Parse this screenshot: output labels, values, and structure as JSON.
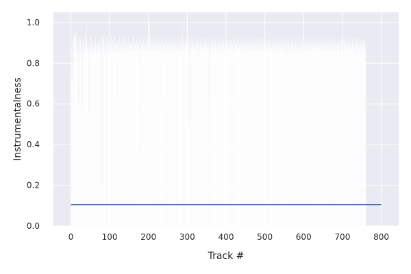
{
  "chart_data": {
    "type": "bar",
    "xlabel": "Track #",
    "ylabel": "Instrumentalness",
    "xlim": [
      -45,
      845
    ],
    "ylim": [
      0.0,
      1.05
    ],
    "xticks": [
      0,
      100,
      200,
      300,
      400,
      500,
      600,
      700,
      800
    ],
    "yticks": [
      0.0,
      0.2,
      0.4,
      0.6,
      0.8,
      1.0
    ],
    "ytick_labels": [
      "0.0",
      "0.2",
      "0.4",
      "0.6",
      "0.8",
      "1.0"
    ],
    "grid": true,
    "background_color": "#eaeaf2",
    "bar_color": "#ffffff",
    "line_color": "#4c72b0",
    "series": [
      {
        "kind": "bar",
        "x_start": 0,
        "x_step": 1,
        "values": [
          0.62,
          0.88,
          0.74,
          0.8,
          0.71,
          0.9,
          0.92,
          0.86,
          0.93,
          0.95,
          0.89,
          0.94,
          0.91,
          0.93,
          0.87,
          0.96,
          0.9,
          0.84,
          0.88,
          0.59,
          0.91,
          0.93,
          0.9,
          0.86,
          0.85,
          0.92,
          0.88,
          0.83,
          0.9,
          0.94,
          0.58,
          0.87,
          0.91,
          0.89,
          0.84,
          0.86,
          0.93,
          0.9,
          0.88,
          0.85,
          1.0,
          0.92,
          0.87,
          0.89,
          0.83,
          0.91,
          0.86,
          0.88,
          0.56,
          0.9,
          0.93,
          0.88,
          0.85,
          0.91,
          0.87,
          0.89,
          0.92,
          0.84,
          0.86,
          0.9,
          0.88,
          0.85,
          0.91,
          0.87,
          0.93,
          0.89,
          0.84,
          0.86,
          0.9,
          0.88,
          0.92,
          0.86,
          0.88,
          0.9,
          0.84,
          0.91,
          0.89,
          0.87,
          0.93,
          0.2,
          0.86,
          0.9,
          0.93,
          0.88,
          0.91,
          0.94,
          0.89,
          0.85,
          0.92,
          0.87,
          0.4,
          0.9,
          0.88,
          0.93,
          0.86,
          0.91,
          0.89,
          0.84,
          0.9,
          0.87,
          0.92,
          0.88,
          0.91,
          0.85,
          0.89,
          0.93,
          0.46,
          0.88,
          0.91,
          0.86,
          0.9,
          0.87,
          0.93,
          0.89,
          0.85,
          0.9,
          0.88,
          0.92,
          0.86,
          0.89,
          0.91,
          0.87,
          0.64,
          0.9,
          0.88,
          0.93,
          0.86,
          0.91,
          0.89,
          0.85,
          0.9,
          0.87,
          0.92,
          0.88,
          0.91,
          0.86,
          0.89,
          0.93,
          0.87,
          0.9,
          0.88,
          0.92,
          0.86,
          0.89,
          0.91,
          0.87,
          0.9,
          0.88,
          0.93,
          0.86,
          0.89,
          0.91,
          0.87,
          0.9,
          0.88,
          0.92,
          0.86,
          0.89,
          0.91,
          0.87,
          0.9,
          0.88,
          0.93,
          0.86,
          0.89,
          0.91,
          0.87,
          0.9,
          0.88,
          0.92,
          0.86,
          0.89,
          0.91,
          0.87,
          0.9,
          0.88,
          0.92,
          0.86,
          0.89,
          0.91,
          0.87,
          0.37,
          0.9,
          0.88,
          0.92,
          0.86,
          0.89,
          0.91,
          0.87,
          0.9,
          0.88,
          0.93,
          0.86,
          0.89,
          0.91,
          0.87,
          0.9,
          0.88,
          0.92,
          0.86,
          0.89,
          0.91,
          0.87,
          0.99,
          0.88,
          0.92,
          0.86,
          0.89,
          0.91,
          0.87,
          0.9,
          0.88,
          0.93,
          0.86,
          0.89,
          0.91,
          0.87,
          0.9,
          0.88,
          0.92,
          0.86,
          0.89,
          0.91,
          0.87,
          0.9,
          0.88,
          0.92,
          0.86,
          0.89,
          0.91,
          0.87,
          0.9,
          0.88,
          0.92,
          0.6,
          0.89,
          0.91,
          0.87,
          0.9,
          0.88,
          0.92,
          0.86,
          0.89,
          0.91,
          0.87,
          0.9,
          0.88,
          0.93,
          0.86,
          0.89,
          0.91,
          0.87,
          0.9,
          0.88,
          0.92,
          0.86,
          0.89,
          0.91,
          0.87,
          0.9,
          0.88,
          0.92,
          0.86,
          0.89,
          0.91,
          0.87,
          0.9,
          0.88,
          0.92,
          0.86,
          0.89,
          0.91,
          0.87,
          0.9,
          0.88,
          0.93,
          0.86,
          0.89,
          0.91,
          0.87,
          0.9,
          0.88,
          0.92,
          0.86,
          0.89,
          0.91,
          0.87,
          0.98,
          0.88,
          0.92,
          0.86,
          0.89,
          0.91,
          0.87,
          0.9,
          0.88,
          0.92,
          0.86,
          0.89,
          0.91,
          0.87,
          0.9,
          0.88,
          0.92,
          0.86,
          0.49,
          0.91,
          0.87,
          0.9,
          0.88,
          0.92,
          0.86,
          0.89,
          0.91,
          0.87,
          0.9,
          0.88,
          0.92,
          0.86,
          0.89,
          0.91,
          0.87,
          0.9,
          0.88,
          0.92,
          0.86,
          0.89,
          0.91,
          0.87,
          0.9,
          0.88,
          0.92,
          0.86,
          0.89,
          0.91,
          0.87,
          0.9,
          0.88,
          0.92,
          0.86,
          0.89,
          0.91,
          0.87,
          0.9,
          0.88,
          0.92,
          0.86,
          0.89,
          0.91,
          0.87,
          0.9,
          0.88,
          0.92,
          0.86,
          0.89,
          0.91,
          0.87,
          0.55,
          0.88,
          0.92,
          0.86,
          0.89,
          0.91,
          0.87,
          0.9,
          0.88,
          0.92,
          0.86,
          0.89,
          0.91,
          0.87,
          0.9,
          0.88,
          0.92,
          0.86,
          0.89,
          0.91,
          0.87,
          0.9,
          0.88,
          0.92,
          0.86,
          0.89,
          0.91,
          0.87,
          0.9,
          0.88,
          0.92,
          0.86,
          0.89,
          0.91,
          0.87,
          0.9,
          0.88,
          0.92,
          0.86,
          0.89,
          0.91,
          0.87,
          0.9,
          0.88,
          0.92,
          0.86,
          0.89,
          0.91,
          0.87,
          0.9,
          0.88,
          0.92,
          0.86,
          0.89,
          0.91,
          0.87,
          0.9,
          0.88,
          0.92,
          0.86,
          0.89,
          0.91,
          0.87,
          0.9,
          0.88,
          0.92,
          0.86,
          0.89,
          0.91,
          0.87,
          0.9,
          0.88,
          0.92,
          0.86,
          0.89,
          0.91,
          0.87,
          0.9,
          0.88,
          0.92,
          0.86,
          0.89,
          0.91,
          0.87,
          0.9,
          0.88,
          0.92,
          0.86,
          0.89,
          0.91,
          0.87,
          0.9,
          0.88,
          0.92,
          0.86,
          0.89,
          0.91,
          0.87,
          0.9,
          0.88,
          0.92,
          0.86,
          0.89,
          0.91,
          0.87,
          0.9,
          0.88,
          0.92,
          0.86,
          0.89,
          0.91,
          0.87,
          0.9,
          0.88,
          0.92,
          0.86,
          0.89,
          0.91,
          0.87,
          0.9,
          0.88,
          0.92,
          0.86,
          0.89,
          0.91,
          0.87,
          0.9,
          0.88,
          0.92,
          0.86,
          0.89,
          0.91,
          0.87,
          0.9,
          0.88,
          0.92,
          0.86,
          0.89,
          0.91,
          0.87,
          0.9,
          0.88,
          0.92,
          0.86,
          0.89,
          0.91,
          0.87,
          0.9,
          0.88,
          0.92,
          0.86,
          0.89,
          0.91,
          0.87,
          0.9,
          0.88,
          0.92,
          0.86,
          0.89,
          0.91,
          0.87,
          0.9,
          0.88,
          0.92,
          0.86,
          0.89,
          0.91,
          0.87,
          0.9,
          0.88,
          0.92,
          0.86,
          0.89,
          0.91,
          0.87,
          0.9,
          0.88,
          0.92,
          0.86,
          0.89,
          0.91,
          0.87,
          0.9,
          0.88,
          0.92,
          0.86,
          0.89,
          0.91,
          0.87,
          0.9,
          0.88,
          0.92,
          0.86,
          0.89,
          0.91,
          0.87,
          0.9,
          0.88,
          0.92,
          0.86,
          0.89,
          0.91,
          0.87,
          0.9,
          0.88,
          0.92,
          0.86,
          0.89,
          0.91,
          0.87,
          0.9,
          0.88,
          0.92,
          0.86,
          0.89,
          0.91,
          0.87,
          0.9,
          0.88,
          0.92,
          0.86,
          0.89,
          0.91,
          0.87,
          0.9,
          0.88,
          0.92,
          0.86,
          0.89,
          0.91,
          0.87,
          0.9,
          0.88,
          0.92,
          0.86,
          0.89,
          0.91,
          0.87,
          0.9,
          0.88,
          0.92,
          0.86,
          0.89,
          0.91,
          0.87,
          0.9,
          0.88,
          0.92,
          0.86,
          0.89,
          0.91,
          0.87,
          0.9,
          0.88,
          0.92,
          0.86,
          0.89,
          0.91,
          0.87,
          0.9,
          0.88,
          0.92,
          0.86,
          0.89,
          0.91,
          0.87,
          0.9,
          0.88,
          0.92,
          0.86,
          0.89,
          0.91,
          0.87,
          0.9,
          0.88,
          0.92,
          0.86,
          0.89,
          0.91,
          0.87,
          0.9,
          0.88,
          0.92,
          0.86,
          0.89,
          0.91,
          0.87,
          0.9,
          0.88,
          0.92,
          0.86,
          0.89,
          0.91,
          0.87,
          0.9,
          0.88,
          0.92,
          0.86,
          0.89,
          0.91,
          0.87,
          0.9,
          0.88,
          0.92,
          0.86,
          0.89,
          0.91,
          0.87,
          0.9,
          0.88,
          0.92,
          0.86,
          0.89,
          0.91,
          0.87,
          0.9,
          0.88,
          0.92,
          0.86,
          0.89,
          0.91,
          0.87,
          0.9,
          0.88,
          0.92,
          0.86,
          0.89,
          0.91,
          0.87,
          0.9,
          0.88,
          0.92,
          0.86,
          0.89,
          0.91,
          0.87,
          0.9,
          0.88,
          0.92,
          0.86,
          0.89,
          0.91,
          0.87,
          0.9,
          0.88,
          0.92,
          0.86,
          0.89,
          0.91,
          0.87,
          0.9,
          0.88,
          0.92,
          0.86,
          0.89,
          0.91,
          0.87,
          0.9,
          0.88,
          0.92,
          0.86,
          0.89,
          0.91,
          0.87,
          0.9,
          0.88,
          0.92,
          0.86,
          0.89,
          0.91,
          0.87,
          0.9,
          0.88,
          0.92,
          0.86,
          0.89,
          0.91,
          0.87,
          0.9,
          0.88,
          0.92,
          0.86,
          0.89,
          0.91,
          0.87,
          0.9,
          0.88,
          0.92,
          0.86,
          0.89,
          0.91,
          0.87,
          0.9,
          0.88,
          0.92,
          0.86,
          0.89,
          0.91,
          0.87,
          0.9,
          0.88,
          0.92,
          0.86,
          0.89
        ]
      },
      {
        "kind": "line",
        "x": [
          0,
          800
        ],
        "values": [
          0.105,
          0.105
        ]
      }
    ]
  }
}
